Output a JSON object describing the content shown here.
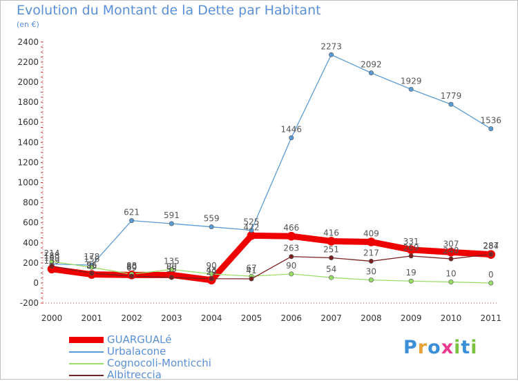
{
  "title": "Evolution du Montant de la Dette par Habitant",
  "subtitle": "(en €)",
  "logo": {
    "text": "Proxiti",
    "letters": [
      "P",
      "r",
      "o",
      "x",
      "i",
      "t",
      "i"
    ],
    "colors": [
      "#3a8fd8",
      "#e8a23a",
      "#3a8fd8",
      "#e83a8f",
      "#7cc242",
      "#3a8fd8",
      "#7cc242"
    ]
  },
  "chart_data": {
    "type": "line",
    "title": "Evolution du Montant de la Dette par Habitant",
    "ylabel": "(en €)",
    "xlabel": "",
    "categories": [
      "2000",
      "2001",
      "2002",
      "2003",
      "2004",
      "2005",
      "2006",
      "2007",
      "2008",
      "2009",
      "2010",
      "2011"
    ],
    "ylim": [
      -200,
      2400
    ],
    "yticks": [
      -200,
      0,
      200,
      400,
      600,
      800,
      1000,
      1200,
      1400,
      1600,
      1800,
      2000,
      2200,
      2400
    ],
    "grid": false,
    "legend_position": "bottom-left",
    "series": [
      {
        "name": "GUARGUALé",
        "color": "#ee0000",
        "values": [
          139,
          85,
          80,
          80,
          29,
          472,
          466,
          416,
          409,
          331,
          307,
          284
        ]
      },
      {
        "name": "Urbalacone",
        "color": "#5b9bd5",
        "values": [
          188,
          178,
          621,
          591,
          559,
          525,
          1446,
          2273,
          2092,
          1929,
          1779,
          1536
        ]
      },
      {
        "name": "Cognocoli-Monticchi",
        "color": "#99dd66",
        "values": [
          214,
          156,
          88,
          135,
          90,
          67,
          90,
          54,
          30,
          19,
          10,
          0
        ]
      },
      {
        "name": "Albitreccia",
        "color": "#7a2020",
        "values": [
          169,
          96,
          69,
          55,
          43,
          41,
          263,
          251,
          217,
          269,
          240,
          287
        ]
      }
    ]
  }
}
